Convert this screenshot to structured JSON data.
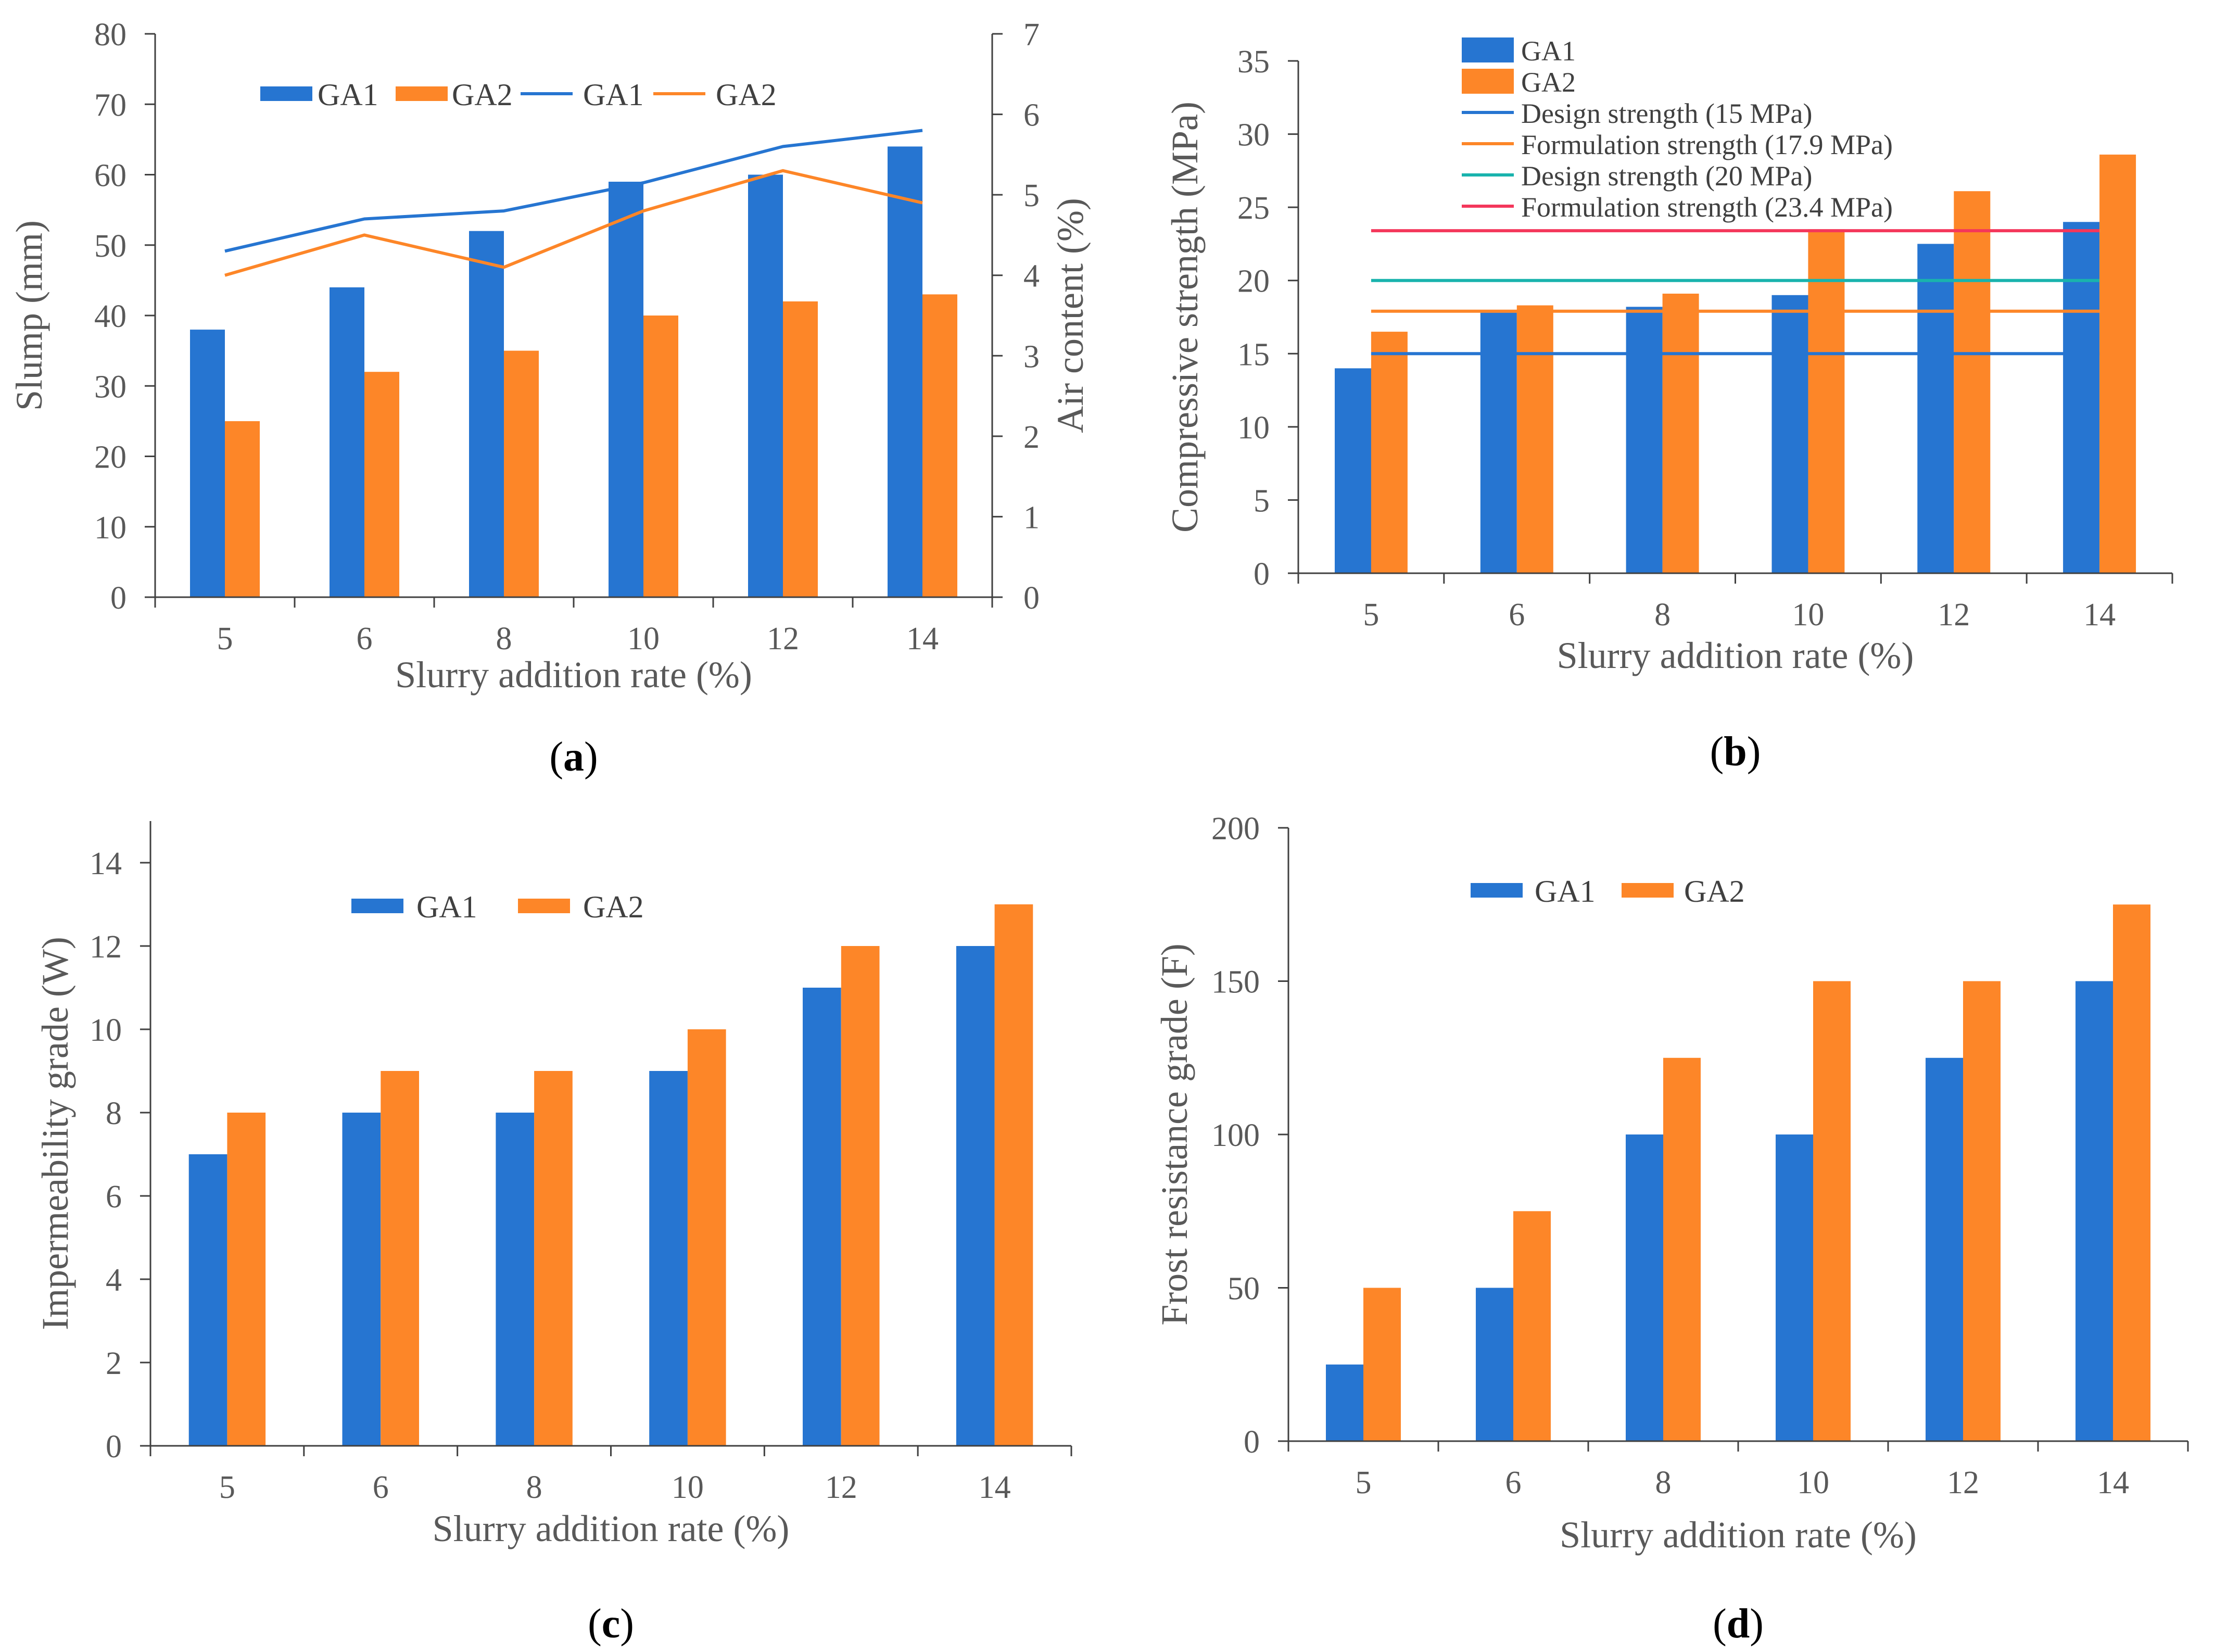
{
  "colors": {
    "ga1": "#2675d1",
    "ga2": "#fd8628",
    "design20": "#19b3ad",
    "form234": "#f4375b",
    "axis": "#404040"
  },
  "chart_data": [
    {
      "id": "a",
      "type": "bar+line",
      "caption_letter": "a",
      "categories": [
        "5",
        "6",
        "8",
        "10",
        "12",
        "14"
      ],
      "series": [
        {
          "name": "GA1",
          "kind": "bar",
          "axis": "left",
          "values": [
            38,
            44,
            52,
            59,
            60,
            64
          ]
        },
        {
          "name": "GA2",
          "kind": "bar",
          "axis": "left",
          "values": [
            25,
            32,
            35,
            40,
            42,
            43
          ]
        },
        {
          "name": "GA1",
          "kind": "line",
          "axis": "right",
          "values": [
            4.3,
            4.7,
            4.8,
            5.15,
            5.6,
            5.8
          ]
        },
        {
          "name": "GA2",
          "kind": "line",
          "axis": "right",
          "values": [
            4.0,
            4.5,
            4.1,
            4.8,
            5.3,
            4.9
          ]
        }
      ],
      "xlabel": "Slurry addition rate (%)",
      "ylabel": "Slump (mm)",
      "y2label": "Air content (%)",
      "ylim": [
        0,
        80
      ],
      "yticks": [
        "0",
        "10",
        "20",
        "30",
        "40",
        "50",
        "60",
        "70",
        "80"
      ],
      "y2lim": [
        0,
        7
      ],
      "y2ticks": [
        "0",
        "1",
        "2",
        "3",
        "4",
        "5",
        "6",
        "7"
      ],
      "legend": [
        "GA1",
        "GA2",
        "GA1",
        "GA2"
      ]
    },
    {
      "id": "b",
      "type": "bar",
      "caption_letter": "b",
      "categories": [
        "5",
        "6",
        "8",
        "10",
        "12",
        "14"
      ],
      "series": [
        {
          "name": "GA1",
          "kind": "bar",
          "values": [
            14,
            17.8,
            18.2,
            19,
            22.5,
            24
          ]
        },
        {
          "name": "GA2",
          "kind": "bar",
          "values": [
            16.5,
            18.3,
            19.1,
            23.5,
            26.1,
            28.6
          ]
        }
      ],
      "reference_lines": [
        {
          "name": "Design strength (15 MPa)",
          "value": 15
        },
        {
          "name": "Formulation strength (17.9 MPa)",
          "value": 17.9
        },
        {
          "name": "Design strength (20 MPa)",
          "value": 20
        },
        {
          "name": "Formulation strength (23.4 MPa)",
          "value": 23.4
        }
      ],
      "xlabel": "Slurry addition rate (%)",
      "ylabel": "Compressive strength (MPa)",
      "ylim": [
        0,
        35
      ],
      "yticks": [
        "0",
        "5",
        "10",
        "15",
        "20",
        "25",
        "30",
        "35"
      ],
      "legend": [
        "GA1",
        "GA2",
        "Design strength (15 MPa)",
        "Formulation strength (17.9 MPa)",
        "Design strength (20 MPa)",
        "Formulation strength (23.4 MPa)"
      ]
    },
    {
      "id": "c",
      "type": "bar",
      "caption_letter": "c",
      "categories": [
        "5",
        "6",
        "8",
        "10",
        "12",
        "14"
      ],
      "series": [
        {
          "name": "GA1",
          "kind": "bar",
          "values": [
            7,
            8,
            8,
            9,
            11,
            12
          ]
        },
        {
          "name": "GA2",
          "kind": "bar",
          "values": [
            8,
            9,
            9,
            10,
            12,
            13
          ]
        }
      ],
      "xlabel": "Slurry addition rate (%)",
      "ylabel": "Impermeability  grade (W)",
      "ylim": [
        0,
        15
      ],
      "yticks": [
        "0",
        "2",
        "4",
        "6",
        "8",
        "10",
        "12",
        "14"
      ],
      "legend": [
        "GA1",
        "GA2"
      ]
    },
    {
      "id": "d",
      "type": "bar",
      "caption_letter": "d",
      "categories": [
        "5",
        "6",
        "8",
        "10",
        "12",
        "14"
      ],
      "series": [
        {
          "name": "GA1",
          "kind": "bar",
          "values": [
            25,
            50,
            100,
            100,
            125,
            150
          ]
        },
        {
          "name": "GA2",
          "kind": "bar",
          "values": [
            50,
            75,
            125,
            150,
            150,
            175
          ]
        }
      ],
      "xlabel": "Slurry addition rate (%)",
      "ylabel": "Frost resistance  grade (F)",
      "ylim": [
        0,
        200
      ],
      "yticks": [
        "0",
        "50",
        "100",
        "150",
        "200"
      ],
      "legend": [
        "GA1",
        "GA2"
      ]
    }
  ]
}
